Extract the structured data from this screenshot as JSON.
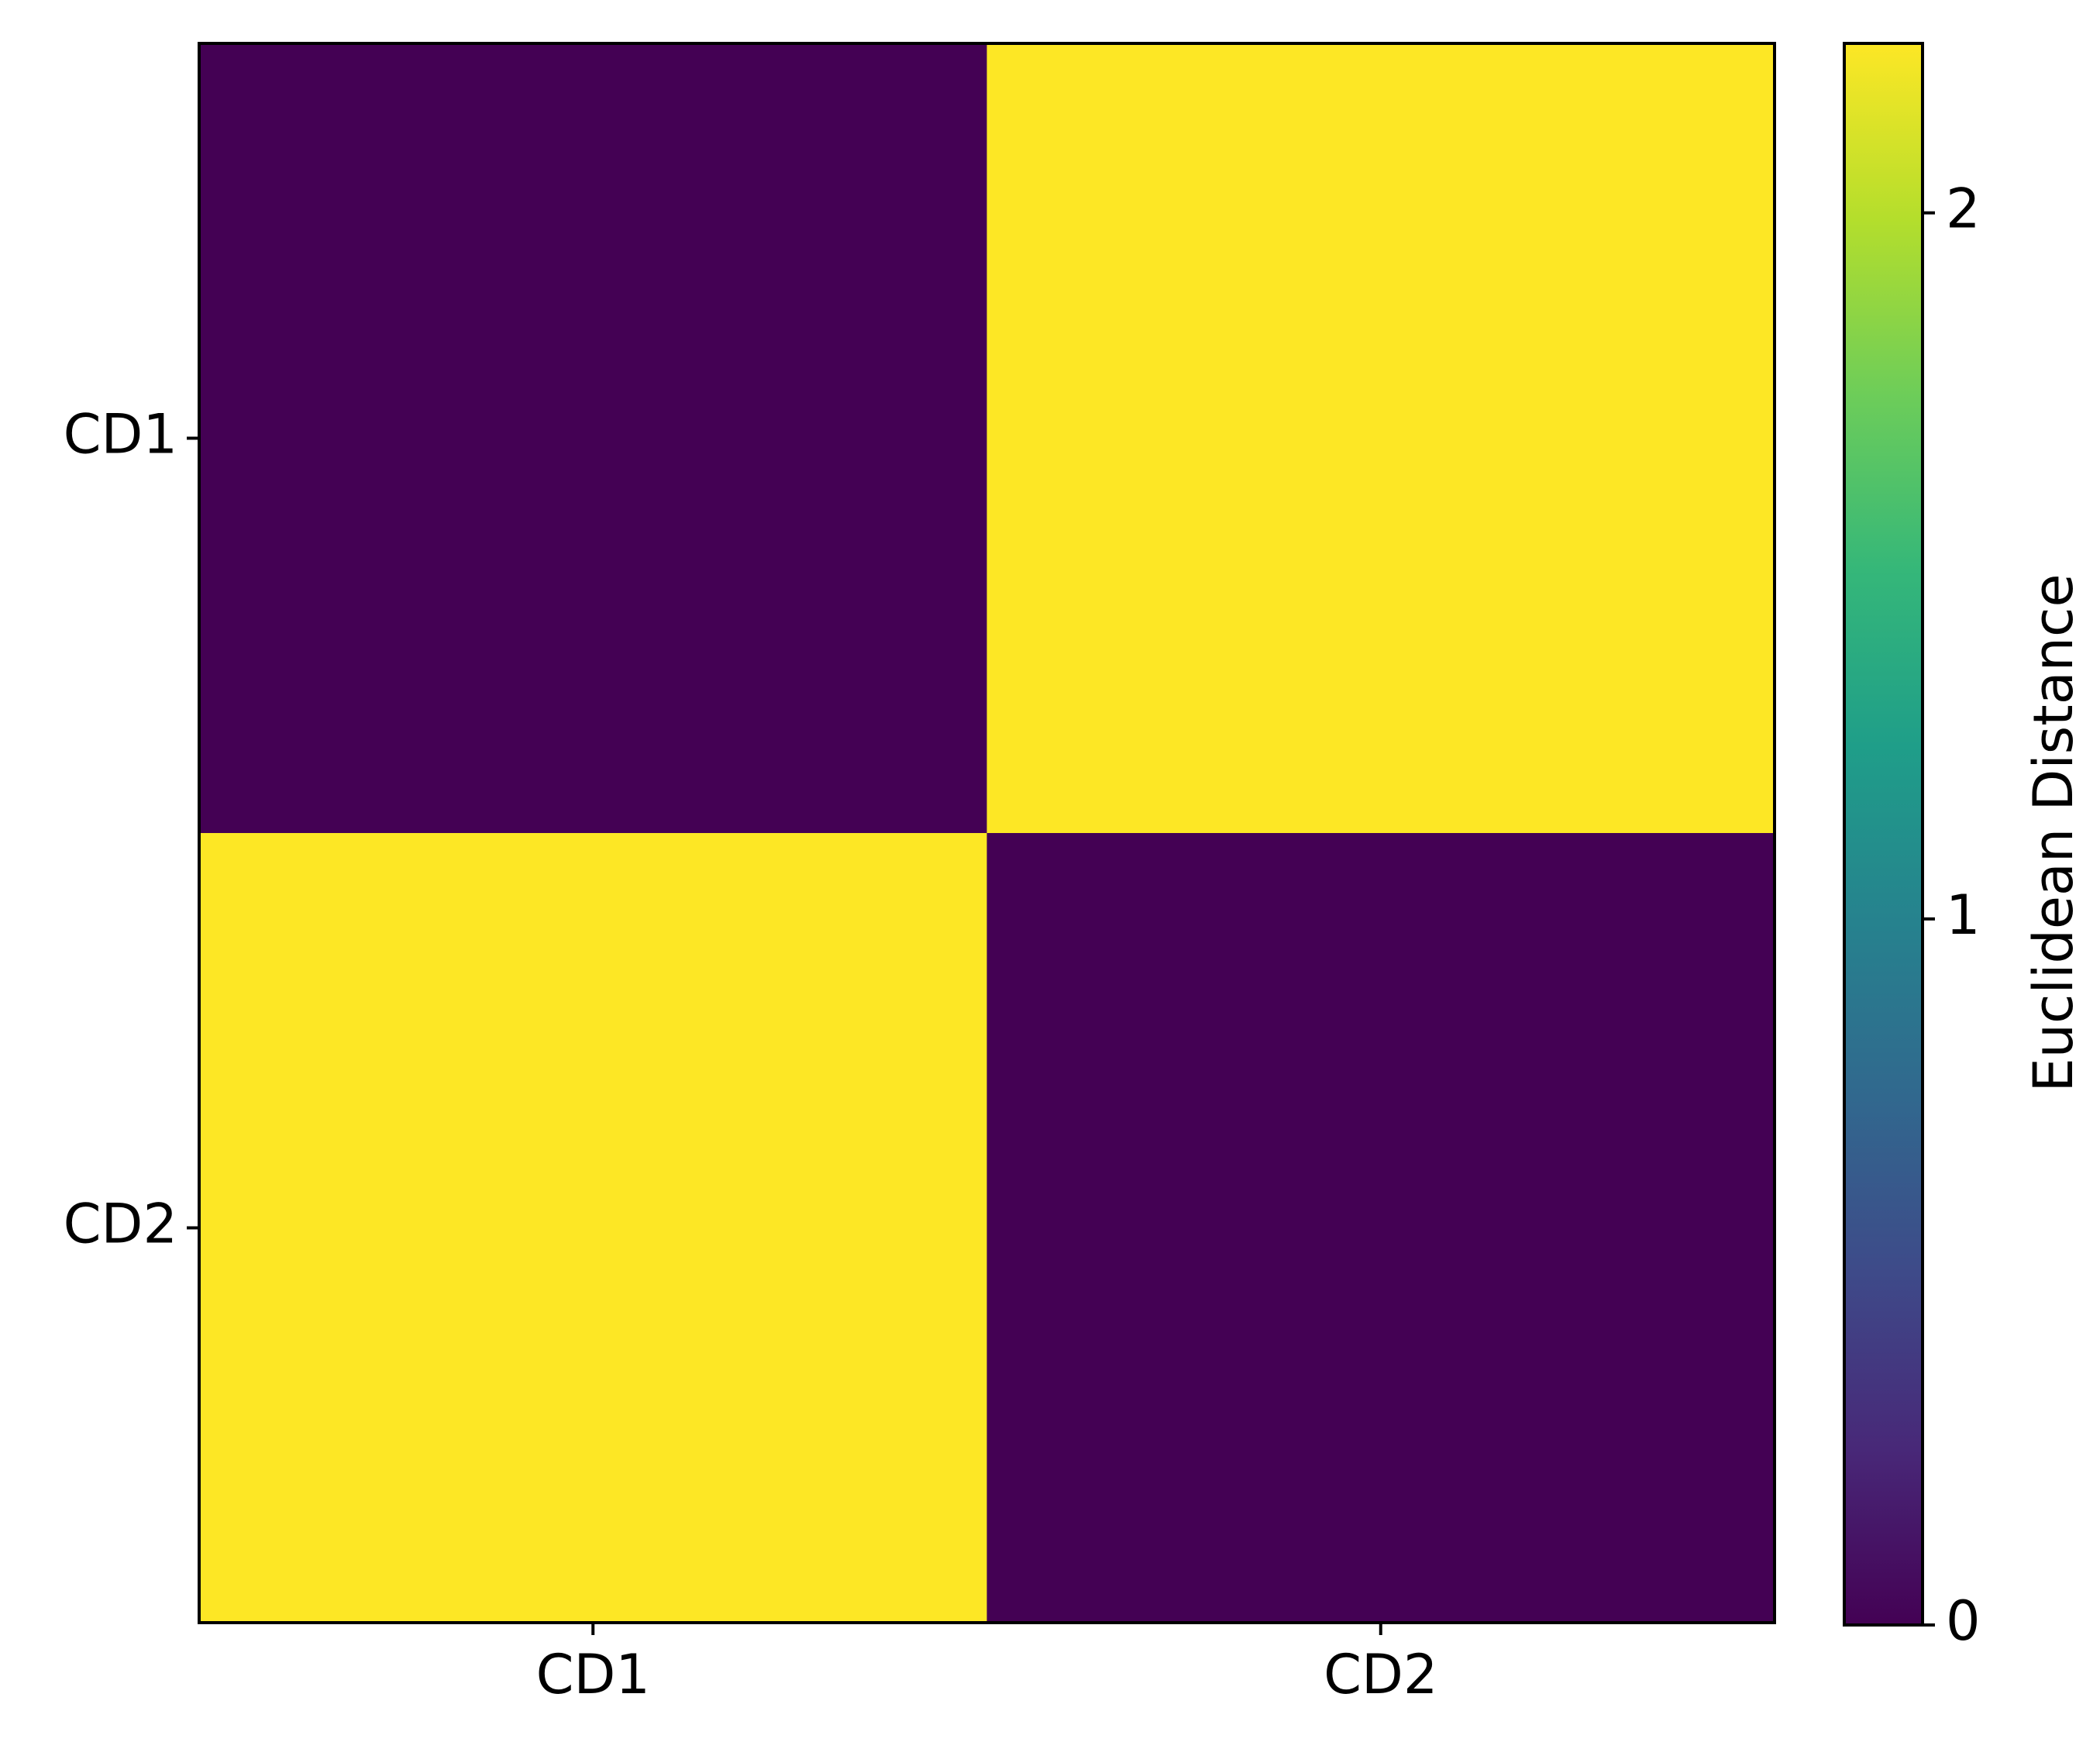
{
  "chart_data": {
    "type": "heatmap",
    "x_categories": [
      "CD1",
      "CD2"
    ],
    "y_categories": [
      "CD1",
      "CD2"
    ],
    "values": [
      [
        0,
        2.24
      ],
      [
        2.24,
        0
      ]
    ],
    "colormap": "viridis",
    "clim": [
      0,
      2.24
    ],
    "cticks": [
      0,
      1,
      2
    ],
    "colorbar_label": "Euclidean Distance"
  }
}
